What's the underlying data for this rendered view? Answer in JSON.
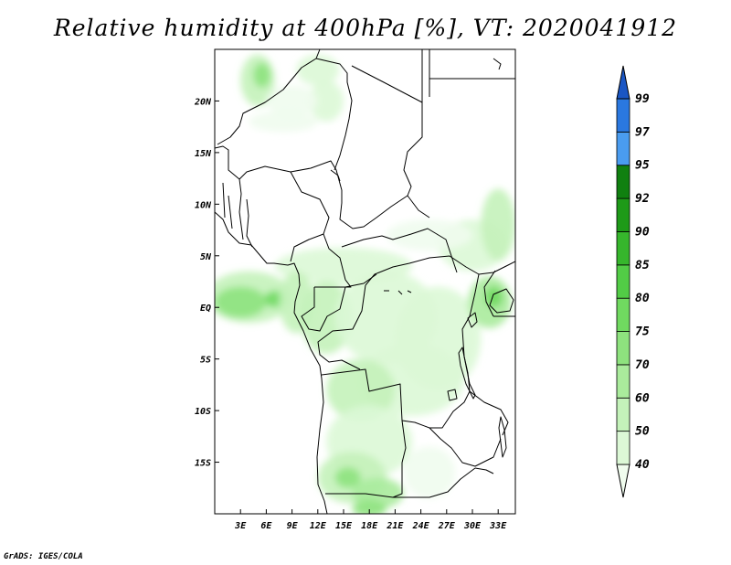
{
  "title": "Relative humidity at 400hPa [%], VT: 2020041912",
  "credit": "GrADS: IGES/COLA",
  "map": {
    "lon_range": [
      0,
      35
    ],
    "lat_range": [
      -20,
      25
    ],
    "lon_ticks": [
      {
        "value": 3,
        "label": "3E"
      },
      {
        "value": 6,
        "label": "6E"
      },
      {
        "value": 9,
        "label": "9E"
      },
      {
        "value": 12,
        "label": "12E"
      },
      {
        "value": 15,
        "label": "15E"
      },
      {
        "value": 18,
        "label": "18E"
      },
      {
        "value": 21,
        "label": "21E"
      },
      {
        "value": 24,
        "label": "24E"
      },
      {
        "value": 27,
        "label": "27E"
      },
      {
        "value": 30,
        "label": "30E"
      },
      {
        "value": 33,
        "label": "33E"
      }
    ],
    "lat_ticks": [
      {
        "value": 20,
        "label": "20N"
      },
      {
        "value": 15,
        "label": "15N"
      },
      {
        "value": 10,
        "label": "10N"
      },
      {
        "value": 5,
        "label": "5N"
      },
      {
        "value": 0,
        "label": "EQ"
      },
      {
        "value": -5,
        "label": "5S"
      },
      {
        "value": -10,
        "label": "10S"
      },
      {
        "value": -15,
        "label": "15S"
      }
    ]
  },
  "colorbar": {
    "levels": [
      "40",
      "50",
      "60",
      "70",
      "75",
      "80",
      "85",
      "90",
      "92",
      "95",
      "97",
      "99"
    ],
    "colors": [
      "#f0fcee",
      "#dcf8d6",
      "#c4f2ba",
      "#aaeb9c",
      "#8ee27e",
      "#70d960",
      "#52cc46",
      "#36b62c",
      "#1e9a18",
      "#108010",
      "#4a9cf0",
      "#2a78e0",
      "#1a56c4"
    ]
  },
  "humidity_patches": [
    {
      "lon": 5,
      "lat": 22,
      "rx": 2.0,
      "ry": 2.5,
      "level": 2
    },
    {
      "lon": 5.5,
      "lat": 22.5,
      "rx": 1.0,
      "ry": 1.2,
      "level": 4
    },
    {
      "lon": 12,
      "lat": 23,
      "rx": 2.5,
      "ry": 1.5,
      "level": 1
    },
    {
      "lon": 13,
      "lat": 20,
      "rx": 2.0,
      "ry": 2.0,
      "level": 1
    },
    {
      "lon": 9,
      "lat": 20,
      "rx": 3.0,
      "ry": 1.5,
      "level": 0
    },
    {
      "lon": 8,
      "lat": 18,
      "rx": 4.0,
      "ry": 1.0,
      "level": 0
    },
    {
      "lon": 30,
      "lat": 6,
      "rx": 4.0,
      "ry": 2.5,
      "level": 1
    },
    {
      "lon": 33,
      "lat": 8,
      "rx": 2.0,
      "ry": 3.5,
      "level": 2
    },
    {
      "lon": 25,
      "lat": 7,
      "rx": 5.0,
      "ry": 1.5,
      "level": 0
    },
    {
      "lon": 15,
      "lat": 4,
      "rx": 8.0,
      "ry": 1.8,
      "level": 1
    },
    {
      "lon": 4,
      "lat": 1,
      "rx": 5.0,
      "ry": 2.5,
      "level": 2
    },
    {
      "lon": 3,
      "lat": 0.5,
      "rx": 3.0,
      "ry": 1.5,
      "level": 4
    },
    {
      "lon": 7,
      "lat": 0.8,
      "rx": 1.2,
      "ry": 0.8,
      "level": 5
    },
    {
      "lon": 9.5,
      "lat": 0.5,
      "rx": 2.0,
      "ry": 3.0,
      "level": 2
    },
    {
      "lon": 13,
      "lat": -1,
      "rx": 3.0,
      "ry": 3.5,
      "level": 2
    },
    {
      "lon": 20,
      "lat": -1,
      "rx": 6.0,
      "ry": 4.5,
      "level": 1
    },
    {
      "lon": 26,
      "lat": -3,
      "rx": 5.0,
      "ry": 5.0,
      "level": 1
    },
    {
      "lon": 32,
      "lat": 0.5,
      "rx": 2.5,
      "ry": 2.5,
      "level": 3
    },
    {
      "lon": 32.5,
      "lat": 1.0,
      "rx": 1.0,
      "ry": 1.0,
      "level": 5
    },
    {
      "lon": 23,
      "lat": -7,
      "rx": 6.0,
      "ry": 3.5,
      "level": 1
    },
    {
      "lon": 17,
      "lat": -8,
      "rx": 4.0,
      "ry": 3.0,
      "level": 2
    },
    {
      "lon": 18,
      "lat": -13,
      "rx": 5.0,
      "ry": 3.5,
      "level": 1
    },
    {
      "lon": 16,
      "lat": -16.5,
      "rx": 4.0,
      "ry": 2.5,
      "level": 2
    },
    {
      "lon": 15.5,
      "lat": -16.5,
      "rx": 1.5,
      "ry": 1.0,
      "level": 4
    },
    {
      "lon": 19,
      "lat": -18,
      "rx": 3.0,
      "ry": 1.5,
      "level": 3
    },
    {
      "lon": 18,
      "lat": -19.5,
      "rx": 2.0,
      "ry": 0.8,
      "level": 4
    },
    {
      "lon": 25,
      "lat": -16,
      "rx": 3.0,
      "ry": 2.5,
      "level": 0
    }
  ]
}
